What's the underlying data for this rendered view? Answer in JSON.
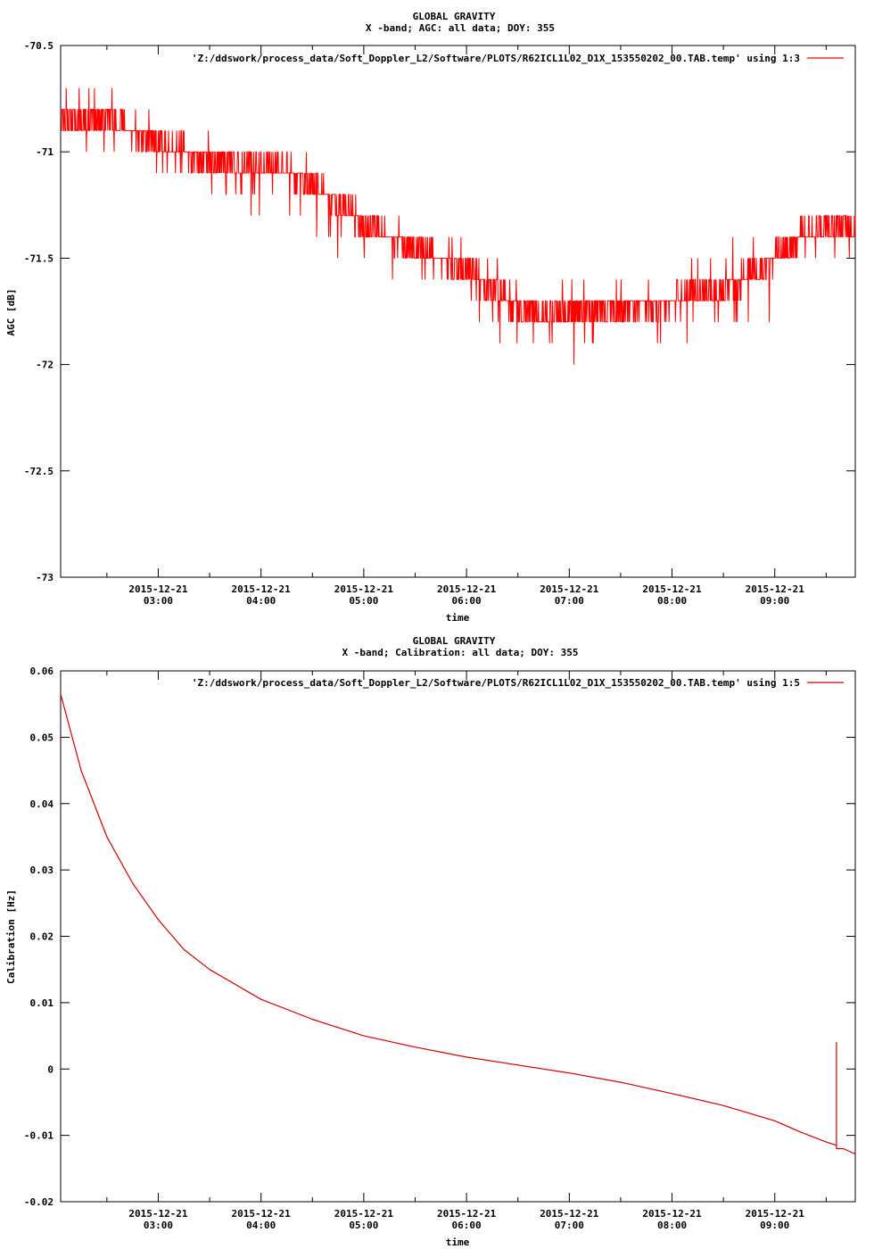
{
  "chart_data": [
    {
      "type": "line",
      "title": "GLOBAL GRAVITY",
      "subtitle": "X -band; AGC: all data; DOY: 355",
      "xlabel": "time",
      "ylabel": "AGC [dB]",
      "ylim": [
        -73,
        -70.5
      ],
      "xlim": [
        "2015-12-21 02:03",
        "2015-12-21 09:47"
      ],
      "ytick_labels": [
        "-70.5",
        "-71",
        "-71.5",
        "-72",
        "-72.5",
        "-73"
      ],
      "ytick_values": [
        -70.5,
        -71,
        -71.5,
        -72,
        -72.5,
        -73
      ],
      "xtick_values": [
        "2015-12-21 03:00",
        "2015-12-21 04:00",
        "2015-12-21 05:00",
        "2015-12-21 06:00",
        "2015-12-21 07:00",
        "2015-12-21 08:00",
        "2015-12-21 09:00"
      ],
      "xtick_dates": [
        "2015-12-21",
        "2015-12-21",
        "2015-12-21",
        "2015-12-21",
        "2015-12-21",
        "2015-12-21",
        "2015-12-21"
      ],
      "xtick_times": [
        "03:00",
        "04:00",
        "05:00",
        "06:00",
        "07:00",
        "08:00",
        "09:00"
      ],
      "legend_position": "top-right",
      "color": "#ff0000",
      "series": [
        {
          "name": "'Z:/ddswork/process_data/Soft_Doppler_L2/Software/PLOTS/R62ICL1L02_D1X_153550202_00.TAB.temp' using 1:3",
          "x": [
            "2015-12-21 02:03",
            "2015-12-21 02:30",
            "2015-12-21 03:00",
            "2015-12-21 03:30",
            "2015-12-21 04:00",
            "2015-12-21 04:30",
            "2015-12-21 05:00",
            "2015-12-21 05:30",
            "2015-12-21 06:00",
            "2015-12-21 06:30",
            "2015-12-21 07:00",
            "2015-12-21 07:30",
            "2015-12-21 08:00",
            "2015-12-21 08:30",
            "2015-12-21 09:00",
            "2015-12-21 09:30",
            "2015-12-21 09:47"
          ],
          "values": [
            -70.85,
            -70.85,
            -70.95,
            -71.05,
            -71.05,
            -71.15,
            -71.35,
            -71.45,
            -71.55,
            -71.75,
            -71.75,
            -71.75,
            -71.7,
            -71.65,
            -71.5,
            -71.35,
            -71.35
          ],
          "noise_low": [
            -71.1,
            -71.0,
            -71.1,
            -71.2,
            -71.3,
            -71.45,
            -71.5,
            -71.6,
            -71.7,
            -72.0,
            -72.0,
            -71.9,
            -71.9,
            -71.85,
            -71.8,
            -71.5,
            -71.5
          ],
          "noise_high": [
            -70.7,
            -70.7,
            -70.8,
            -70.9,
            -70.9,
            -71.0,
            -71.2,
            -71.3,
            -71.4,
            -71.6,
            -71.6,
            -71.6,
            -71.5,
            -71.45,
            -71.3,
            -71.2,
            -71.2
          ]
        }
      ]
    },
    {
      "type": "line",
      "title": "GLOBAL GRAVITY",
      "subtitle": "X -band; Calibration: all data; DOY: 355",
      "xlabel": "time",
      "ylabel": "Calibration [Hz]",
      "ylim": [
        -0.02,
        0.06
      ],
      "xlim": [
        "2015-12-21 02:03",
        "2015-12-21 09:47"
      ],
      "ytick_labels": [
        "0.06",
        "0.05",
        "0.04",
        "0.03",
        "0.02",
        "0.01",
        "0",
        "-0.01",
        "-0.02"
      ],
      "ytick_values": [
        0.06,
        0.05,
        0.04,
        0.03,
        0.02,
        0.01,
        0,
        -0.01,
        -0.02
      ],
      "xtick_values": [
        "2015-12-21 03:00",
        "2015-12-21 04:00",
        "2015-12-21 05:00",
        "2015-12-21 06:00",
        "2015-12-21 07:00",
        "2015-12-21 08:00",
        "2015-12-21 09:00"
      ],
      "xtick_dates": [
        "2015-12-21",
        "2015-12-21",
        "2015-12-21",
        "2015-12-21",
        "2015-12-21",
        "2015-12-21",
        "2015-12-21"
      ],
      "xtick_times": [
        "03:00",
        "04:00",
        "05:00",
        "06:00",
        "07:00",
        "08:00",
        "09:00"
      ],
      "legend_position": "top-right",
      "color": "#cc0000",
      "series": [
        {
          "name": "'Z:/ddswork/process_data/Soft_Doppler_L2/Software/PLOTS/R62ICL1L02_D1X_153550202_00.TAB.temp' using 1:5",
          "x": [
            "2015-12-21 02:03",
            "2015-12-21 02:15",
            "2015-12-21 02:30",
            "2015-12-21 02:45",
            "2015-12-21 03:00",
            "2015-12-21 03:15",
            "2015-12-21 03:30",
            "2015-12-21 04:00",
            "2015-12-21 04:30",
            "2015-12-21 05:00",
            "2015-12-21 05:30",
            "2015-12-21 06:00",
            "2015-12-21 06:30",
            "2015-12-21 07:00",
            "2015-12-21 07:30",
            "2015-12-21 08:00",
            "2015-12-21 08:30",
            "2015-12-21 09:00",
            "2015-12-21 09:15",
            "2015-12-21 09:30",
            "2015-12-21 09:36",
            "2015-12-21 09:36",
            "2015-12-21 09:36",
            "2015-12-21 09:40",
            "2015-12-21 09:47"
          ],
          "values": [
            0.0565,
            0.045,
            0.035,
            0.028,
            0.0225,
            0.018,
            0.015,
            0.0105,
            0.0075,
            0.005,
            0.0033,
            0.0018,
            0.0006,
            -0.0006,
            -0.002,
            -0.0037,
            -0.0055,
            -0.0078,
            -0.0095,
            -0.011,
            -0.0115,
            0.004,
            -0.012,
            -0.012,
            -0.0128
          ]
        }
      ]
    }
  ]
}
